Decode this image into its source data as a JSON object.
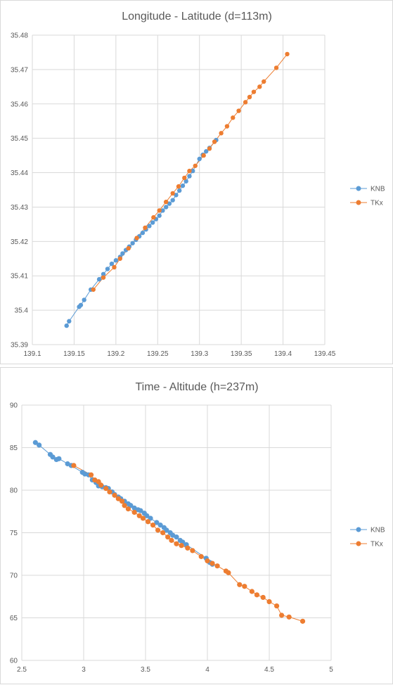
{
  "chart_data": [
    {
      "type": "scatter",
      "title": "Longitude - Latitude (d=113m)",
      "xlabel": "",
      "ylabel": "",
      "xlim": [
        139.1,
        139.45
      ],
      "ylim": [
        35.39,
        35.48
      ],
      "x_ticks": [
        "139.1",
        "139.15",
        "139.2",
        "139.25",
        "139.3",
        "139.35",
        "139.4",
        "139.45"
      ],
      "y_ticks": [
        "35.39",
        "35.4",
        "35.41",
        "35.42",
        "35.43",
        "35.44",
        "35.45",
        "35.46",
        "35.47",
        "35.48"
      ],
      "grid": true,
      "legend_position": "right",
      "series": [
        {
          "name": "KNB",
          "color": "#5b9bd5",
          "points": [
            [
              139.141,
              35.3955
            ],
            [
              139.144,
              35.3968
            ],
            [
              139.156,
              35.401
            ],
            [
              139.158,
              35.4015
            ],
            [
              139.162,
              35.403
            ],
            [
              139.17,
              35.406
            ],
            [
              139.18,
              35.409
            ],
            [
              139.185,
              35.4105
            ],
            [
              139.19,
              35.412
            ],
            [
              139.195,
              35.4135
            ],
            [
              139.2,
              35.4145
            ],
            [
              139.205,
              35.4155
            ],
            [
              139.208,
              35.4165
            ],
            [
              139.212,
              35.4175
            ],
            [
              139.216,
              35.4185
            ],
            [
              139.22,
              35.4195
            ],
            [
              139.224,
              35.4205
            ],
            [
              139.228,
              35.4215
            ],
            [
              139.232,
              35.4225
            ],
            [
              139.236,
              35.4235
            ],
            [
              139.24,
              35.4245
            ],
            [
              139.244,
              35.4255
            ],
            [
              139.248,
              35.4265
            ],
            [
              139.252,
              35.4275
            ],
            [
              139.256,
              35.429
            ],
            [
              139.26,
              35.43
            ],
            [
              139.264,
              35.431
            ],
            [
              139.268,
              35.432
            ],
            [
              139.272,
              35.4335
            ],
            [
              139.276,
              35.4348
            ],
            [
              139.28,
              35.4362
            ],
            [
              139.284,
              35.4375
            ],
            [
              139.288,
              35.439
            ],
            [
              139.292,
              35.4405
            ],
            [
              139.3,
              35.444
            ],
            [
              139.304,
              35.4452
            ],
            [
              139.308,
              35.4462
            ],
            [
              139.312,
              35.4472
            ],
            [
              139.32,
              35.4495
            ]
          ]
        },
        {
          "name": "TKx",
          "color": "#ed7d31",
          "points": [
            [
              139.173,
              35.406
            ],
            [
              139.185,
              35.4095
            ],
            [
              139.198,
              35.4125
            ],
            [
              139.205,
              35.415
            ],
            [
              139.215,
              35.418
            ],
            [
              139.225,
              35.421
            ],
            [
              139.235,
              35.424
            ],
            [
              139.245,
              35.427
            ],
            [
              139.252,
              35.429
            ],
            [
              139.26,
              35.4315
            ],
            [
              139.268,
              35.434
            ],
            [
              139.275,
              35.436
            ],
            [
              139.282,
              35.4385
            ],
            [
              139.288,
              35.4405
            ],
            [
              139.295,
              35.442
            ],
            [
              139.305,
              35.445
            ],
            [
              139.312,
              35.447
            ],
            [
              139.318,
              35.449
            ],
            [
              139.326,
              35.4515
            ],
            [
              139.333,
              35.4535
            ],
            [
              139.34,
              35.456
            ],
            [
              139.347,
              35.458
            ],
            [
              139.355,
              35.4605
            ],
            [
              139.36,
              35.462
            ],
            [
              139.365,
              35.4635
            ],
            [
              139.372,
              35.465
            ],
            [
              139.377,
              35.4665
            ],
            [
              139.392,
              35.4705
            ],
            [
              139.405,
              35.4745
            ]
          ]
        }
      ]
    },
    {
      "type": "line",
      "title": "Time - Altitude (h=237m)",
      "xlabel": "",
      "ylabel": "",
      "xlim": [
        2.5,
        5
      ],
      "ylim": [
        60,
        90
      ],
      "x_ticks": [
        "2.5",
        "3",
        "3.5",
        "4",
        "4.5",
        "5"
      ],
      "y_ticks": [
        "60",
        "65",
        "70",
        "75",
        "80",
        "85",
        "90"
      ],
      "grid": true,
      "legend_position": "right",
      "series": [
        {
          "name": "KNB",
          "color": "#5b9bd5",
          "points": [
            [
              2.61,
              85.6
            ],
            [
              2.64,
              85.3
            ],
            [
              2.73,
              84.2
            ],
            [
              2.75,
              83.9
            ],
            [
              2.78,
              83.6
            ],
            [
              2.8,
              83.7
            ],
            [
              2.87,
              83.1
            ],
            [
              2.9,
              82.9
            ],
            [
              2.99,
              82.1
            ],
            [
              3.01,
              81.9
            ],
            [
              3.04,
              81.8
            ],
            [
              3.07,
              81.2
            ],
            [
              3.1,
              80.9
            ],
            [
              3.12,
              80.5
            ],
            [
              3.15,
              80.4
            ],
            [
              3.18,
              80.3
            ],
            [
              3.2,
              80.2
            ],
            [
              3.23,
              79.8
            ],
            [
              3.25,
              79.5
            ],
            [
              3.28,
              79.2
            ],
            [
              3.3,
              79.0
            ],
            [
              3.33,
              78.7
            ],
            [
              3.36,
              78.4
            ],
            [
              3.38,
              78.2
            ],
            [
              3.41,
              77.9
            ],
            [
              3.44,
              77.7
            ],
            [
              3.46,
              77.6
            ],
            [
              3.49,
              77.3
            ],
            [
              3.51,
              77.0
            ],
            [
              3.54,
              76.7
            ],
            [
              3.59,
              76.2
            ],
            [
              3.62,
              75.9
            ],
            [
              3.65,
              75.6
            ],
            [
              3.67,
              75.3
            ],
            [
              3.7,
              75.0
            ],
            [
              3.72,
              74.7
            ],
            [
              3.75,
              74.5
            ],
            [
              3.78,
              74.1
            ],
            [
              3.8,
              73.9
            ],
            [
              3.83,
              73.6
            ],
            [
              3.99,
              72.0
            ],
            [
              4.02,
              71.5
            ],
            [
              4.04,
              71.3
            ]
          ]
        },
        {
          "name": "TKx",
          "color": "#ed7d31",
          "points": [
            [
              2.92,
              82.9
            ],
            [
              3.06,
              81.8
            ],
            [
              3.09,
              81.2
            ],
            [
              3.12,
              81.0
            ],
            [
              3.14,
              80.6
            ],
            [
              3.18,
              80.2
            ],
            [
              3.21,
              79.8
            ],
            [
              3.25,
              79.4
            ],
            [
              3.28,
              79.0
            ],
            [
              3.31,
              78.7
            ],
            [
              3.33,
              78.2
            ],
            [
              3.36,
              77.8
            ],
            [
              3.41,
              77.4
            ],
            [
              3.45,
              77.0
            ],
            [
              3.48,
              76.7
            ],
            [
              3.52,
              76.3
            ],
            [
              3.56,
              75.9
            ],
            [
              3.6,
              75.3
            ],
            [
              3.64,
              75.0
            ],
            [
              3.68,
              74.5
            ],
            [
              3.71,
              74.1
            ],
            [
              3.75,
              73.7
            ],
            [
              3.79,
              73.5
            ],
            [
              3.84,
              73.2
            ],
            [
              3.88,
              72.9
            ],
            [
              3.95,
              72.2
            ],
            [
              4.0,
              71.7
            ],
            [
              4.04,
              71.4
            ],
            [
              4.08,
              71.1
            ],
            [
              4.15,
              70.5
            ],
            [
              4.17,
              70.3
            ],
            [
              4.26,
              68.9
            ],
            [
              4.3,
              68.7
            ],
            [
              4.36,
              68.1
            ],
            [
              4.4,
              67.7
            ],
            [
              4.45,
              67.4
            ],
            [
              4.5,
              66.9
            ],
            [
              4.56,
              66.4
            ],
            [
              4.6,
              65.3
            ],
            [
              4.66,
              65.1
            ],
            [
              4.77,
              64.6
            ]
          ]
        }
      ]
    }
  ]
}
